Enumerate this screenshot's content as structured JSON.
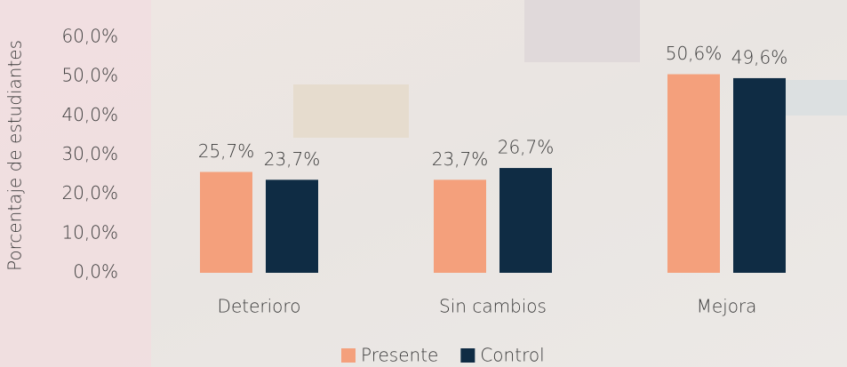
{
  "chart_data": {
    "type": "bar",
    "y_label": "Porcentaje de estudiantes",
    "categories": [
      "Deterioro",
      "Sin cambios",
      "Mejora"
    ],
    "series": [
      {
        "name": "Presente",
        "color": "#f4a07c",
        "values": [
          25.7,
          23.7,
          50.6
        ],
        "value_labels": [
          "25,7%",
          "23,7%",
          "50,6%"
        ]
      },
      {
        "name": "Control",
        "color": "#0f2c44",
        "values": [
          23.7,
          26.7,
          49.6
        ],
        "value_labels": [
          "23,7%",
          "26,7%",
          "49,6%"
        ]
      }
    ],
    "ylim": [
      0,
      60
    ],
    "yticks": [
      {
        "value": 0,
        "label": "0,0%"
      },
      {
        "value": 10,
        "label": "10,0%"
      },
      {
        "value": 20,
        "label": "20,0%"
      },
      {
        "value": 30,
        "label": "30,0%"
      },
      {
        "value": 40,
        "label": "40,0%"
      },
      {
        "value": 50,
        "label": "50,0%"
      },
      {
        "value": 60,
        "label": "60,0%"
      }
    ],
    "grid": false
  }
}
